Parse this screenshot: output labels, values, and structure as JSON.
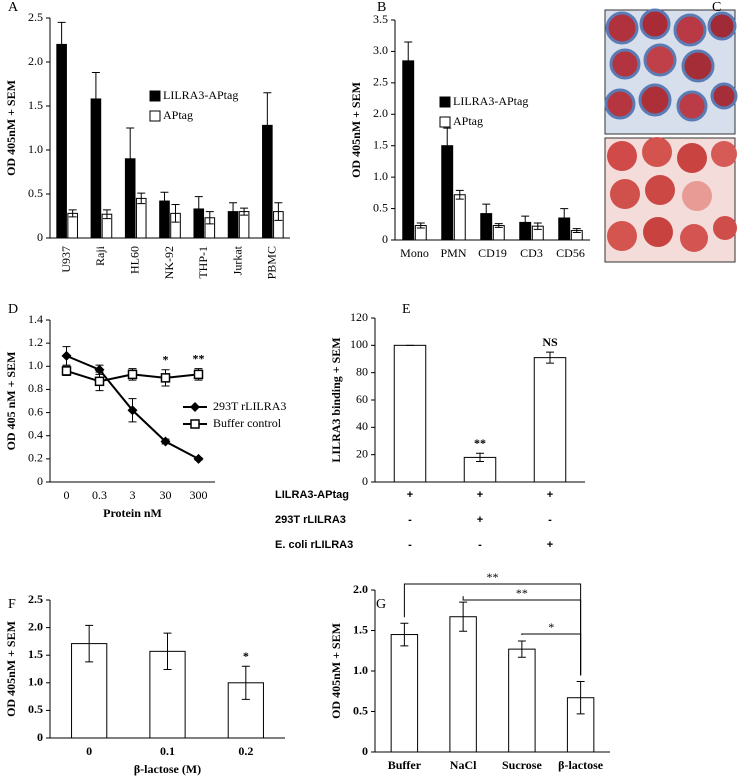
{
  "chart_data": [
    {
      "type": "bar",
      "panel_label": "A",
      "y_label": "OD 405nM + SEM",
      "categories": [
        "U937",
        "Raji",
        "HL60",
        "NK-92",
        "THP-1",
        "Jurkat",
        "PBMC"
      ],
      "series": [
        {
          "name": "LILRA3-APtag",
          "color": "#000000",
          "values": [
            2.2,
            1.58,
            0.9,
            0.42,
            0.33,
            0.3,
            1.28
          ],
          "errors": [
            0.25,
            0.3,
            0.35,
            0.1,
            0.14,
            0.1,
            0.37
          ]
        },
        {
          "name": "APtag",
          "color": "#ffffff",
          "values": [
            0.28,
            0.27,
            0.45,
            0.28,
            0.23,
            0.3,
            0.3
          ],
          "errors": [
            0.04,
            0.05,
            0.06,
            0.1,
            0.07,
            0.04,
            0.1
          ]
        }
      ],
      "ylim": [
        0,
        2.5
      ],
      "yticks": [
        0,
        0.5,
        {
          "value": 1,
          "label": "1.0"
        },
        1.5,
        {
          "value": 2,
          "label": "2.0"
        },
        2.5
      ]
    },
    {
      "type": "bar",
      "panel_label": "B",
      "y_label": "OD 405nM + SEM",
      "categories": [
        "Mono",
        "PMN",
        "CD19",
        "CD3",
        "CD56"
      ],
      "series": [
        {
          "name": "LILRA3-APtag",
          "color": "#000000",
          "values": [
            2.85,
            1.5,
            0.42,
            0.28,
            0.35
          ],
          "errors": [
            0.3,
            0.28,
            0.15,
            0.1,
            0.15
          ]
        },
        {
          "name": "APtag",
          "color": "#ffffff",
          "values": [
            0.23,
            0.72,
            0.23,
            0.22,
            0.15
          ],
          "errors": [
            0.04,
            0.07,
            0.03,
            0.05,
            0.03
          ]
        }
      ],
      "ylim": [
        0,
        3.5
      ],
      "yticks": [
        0,
        0.5,
        {
          "value": 1,
          "label": "1.0"
        },
        1.5,
        {
          "value": 2,
          "label": "2.0"
        },
        2.5,
        {
          "value": 3,
          "label": "3.0"
        },
        3.5
      ]
    },
    {
      "type": "line",
      "panel_label": "D",
      "y_label": "OD 405 nM + SEM",
      "x_label": "Protein nM",
      "categories": [
        "0",
        "0.3",
        "3",
        "30",
        "300"
      ],
      "series": [
        {
          "name": "293T rLILRA3",
          "color": "#000000",
          "marker": "diamond",
          "values": [
            1.09,
            0.97,
            0.62,
            0.35,
            0.2
          ],
          "errors": [
            0.08,
            0.04,
            0.1,
            0.02,
            0.01
          ]
        },
        {
          "name": "Buffer control",
          "color": "#000000",
          "marker": "square",
          "values": [
            0.96,
            0.87,
            0.93,
            0.9,
            0.93
          ],
          "errors": [
            0.04,
            0.08,
            0.05,
            0.07,
            0.05
          ]
        }
      ],
      "annotations": [
        null,
        null,
        null,
        "*",
        "**"
      ],
      "ylim": [
        0,
        1.4
      ],
      "yticks": [
        0,
        0.2,
        0.4,
        0.6,
        0.8,
        {
          "value": 1,
          "label": "1.0"
        },
        1.2,
        1.4
      ]
    },
    {
      "type": "bar",
      "panel_label": "E",
      "y_label": "LILRA3 binding + SEM",
      "series": [
        {
          "color": "#ffffff",
          "values": [
            100,
            18,
            91
          ],
          "errors": [
            0,
            3,
            4
          ]
        }
      ],
      "annotations": [
        null,
        "**",
        "NS"
      ],
      "table": {
        "rows": [
          {
            "label": "LILRA3-APtag",
            "cells": [
              "+",
              "+",
              "+"
            ]
          },
          {
            "label": "293T rLILRA3",
            "cells": [
              "-",
              "+",
              "-"
            ]
          },
          {
            "label": "E. coli rLILRA3",
            "cells": [
              "-",
              "-",
              "+"
            ]
          }
        ]
      },
      "ylim": [
        0,
        120
      ],
      "yticks": [
        0,
        20,
        40,
        60,
        80,
        100,
        120
      ]
    },
    {
      "type": "bar",
      "panel_label": "F",
      "y_label": "OD 405nM + SEM",
      "x_label": "β-lactose (M)",
      "categories": [
        "0",
        "0.1",
        "0.2"
      ],
      "series": [
        {
          "color": "#ffffff",
          "values": [
            1.71,
            1.57,
            1.0
          ],
          "errors": [
            0.33,
            0.33,
            0.3
          ]
        }
      ],
      "annotations": [
        null,
        null,
        "*"
      ],
      "ylim": [
        0,
        2.5
      ],
      "yticks": [
        0,
        0.5,
        {
          "value": 1,
          "label": "1.0"
        },
        1.5,
        {
          "value": 2,
          "label": "2.0"
        },
        2.5
      ]
    },
    {
      "type": "bar",
      "panel_label": "G",
      "y_label": "OD 405nM + SEM",
      "categories": [
        "Buffer",
        "NaCl",
        "Sucrose",
        "β-lactose"
      ],
      "series": [
        {
          "color": "#ffffff",
          "values": [
            1.45,
            1.67,
            1.27,
            0.67
          ],
          "errors": [
            0.14,
            0.18,
            0.1,
            0.2
          ]
        }
      ],
      "brackets": [
        {
          "from": "Buffer",
          "to": "β-lactose",
          "label": "**"
        },
        {
          "from": "NaCl",
          "to": "β-lactose",
          "label": "**"
        },
        {
          "from": "Sucrose",
          "to": "β-lactose",
          "label": "*"
        }
      ],
      "ylim": [
        0,
        2.0
      ],
      "yticks": [
        0,
        0.5,
        {
          "value": 1,
          "label": "1.0"
        },
        1.5,
        {
          "value": 2,
          "label": "2.0"
        }
      ]
    }
  ],
  "panel_c": {
    "panel_label": "C"
  }
}
